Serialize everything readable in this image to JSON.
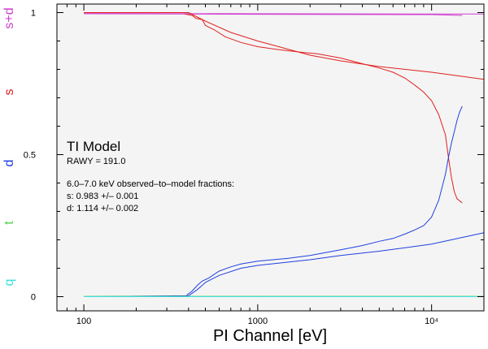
{
  "chart_data": {
    "type": "line",
    "xscale": "log",
    "xlim": [
      70,
      20000
    ],
    "ylim": [
      -0.05,
      1.03
    ],
    "xlabel": "PI Channel [eV]",
    "x_ticks": [
      {
        "value": 100,
        "label": "100"
      },
      {
        "value": 1000,
        "label": "1000"
      },
      {
        "value": 10000,
        "label": "10⁴"
      }
    ],
    "y_ticks": [
      {
        "value": 0,
        "label": "0"
      },
      {
        "value": 0.5,
        "label": "0.5"
      },
      {
        "value": 1,
        "label": "1"
      }
    ],
    "side_labels": [
      {
        "text": "s+d",
        "color": "#d040d0",
        "y": 0.98
      },
      {
        "text": "s",
        "color": "#e02020",
        "y": 0.72
      },
      {
        "text": "d",
        "color": "#2040e0",
        "y": 0.47
      },
      {
        "text": "t",
        "color": "#50d050",
        "y": 0.26
      },
      {
        "text": "q",
        "color": "#40e0e0",
        "y": 0.05
      }
    ],
    "series": [
      {
        "name": "s+d observed",
        "color": "#d040d0",
        "x": [
          100,
          400,
          1000,
          10000,
          15000
        ],
        "y": [
          0.996,
          0.995,
          0.994,
          0.993,
          0.99
        ]
      },
      {
        "name": "s+d model",
        "color": "#d040d0",
        "x": [
          100,
          1000,
          10000,
          20000
        ],
        "y": [
          0.997,
          0.996,
          0.995,
          0.995
        ]
      },
      {
        "name": "s model",
        "color": "#e02020",
        "x": [
          100,
          400,
          500,
          700,
          1000,
          2000,
          3000,
          5000,
          10000,
          20000
        ],
        "y": [
          1.0,
          1.0,
          0.97,
          0.93,
          0.9,
          0.85,
          0.83,
          0.81,
          0.79,
          0.765
        ]
      },
      {
        "name": "s observed",
        "color": "#e02020",
        "x": [
          380,
          420,
          440,
          480,
          500,
          560,
          650,
          800,
          1000,
          1300,
          1800,
          2200,
          3000,
          4000,
          5000,
          6000,
          7000,
          8000,
          9000,
          10000,
          11000,
          12000,
          12500,
          13000,
          13500,
          14000,
          15000
        ],
        "y": [
          0.995,
          0.99,
          0.98,
          0.975,
          0.955,
          0.94,
          0.915,
          0.895,
          0.88,
          0.87,
          0.86,
          0.855,
          0.84,
          0.82,
          0.805,
          0.79,
          0.77,
          0.745,
          0.72,
          0.69,
          0.64,
          0.57,
          0.49,
          0.42,
          0.37,
          0.345,
          0.33
        ]
      },
      {
        "name": "d model",
        "color": "#2040e0",
        "x": [
          100,
          400,
          450,
          500,
          600,
          800,
          1000,
          2000,
          3000,
          5000,
          10000,
          20000
        ],
        "y": [
          0.0,
          0.003,
          0.025,
          0.05,
          0.075,
          0.1,
          0.11,
          0.13,
          0.145,
          0.16,
          0.185,
          0.225
        ]
      },
      {
        "name": "d observed",
        "color": "#2040e0",
        "x": [
          390,
          420,
          450,
          480,
          520,
          600,
          700,
          800,
          1000,
          1500,
          2000,
          3000,
          4000,
          5000,
          6000,
          7000,
          8000,
          9000,
          10000,
          11000,
          12000,
          12500,
          13000,
          13500,
          14000,
          14500,
          15000
        ],
        "y": [
          0.005,
          0.02,
          0.04,
          0.055,
          0.065,
          0.09,
          0.105,
          0.115,
          0.125,
          0.135,
          0.145,
          0.165,
          0.18,
          0.195,
          0.205,
          0.22,
          0.235,
          0.25,
          0.28,
          0.34,
          0.43,
          0.49,
          0.54,
          0.58,
          0.62,
          0.65,
          0.67
        ]
      },
      {
        "name": "t",
        "color": "#50d050",
        "x": [
          100,
          1000,
          10000,
          20000
        ],
        "y": [
          0.001,
          0.001,
          0.001,
          0.001
        ]
      },
      {
        "name": "q",
        "color": "#40e0e0",
        "x": [
          100,
          1000,
          10000,
          20000
        ],
        "y": [
          0.0,
          0.0,
          0.0,
          0.0
        ]
      }
    ],
    "annotations": {
      "title": "TI Model",
      "rawy": "RAWY = 191.0",
      "fractions_label": "6.0–7.0 keV observed–to–model fractions:",
      "s_fraction": "s: 0.983 +/– 0.001",
      "d_fraction": "d: 1.114 +/– 0.002"
    }
  }
}
